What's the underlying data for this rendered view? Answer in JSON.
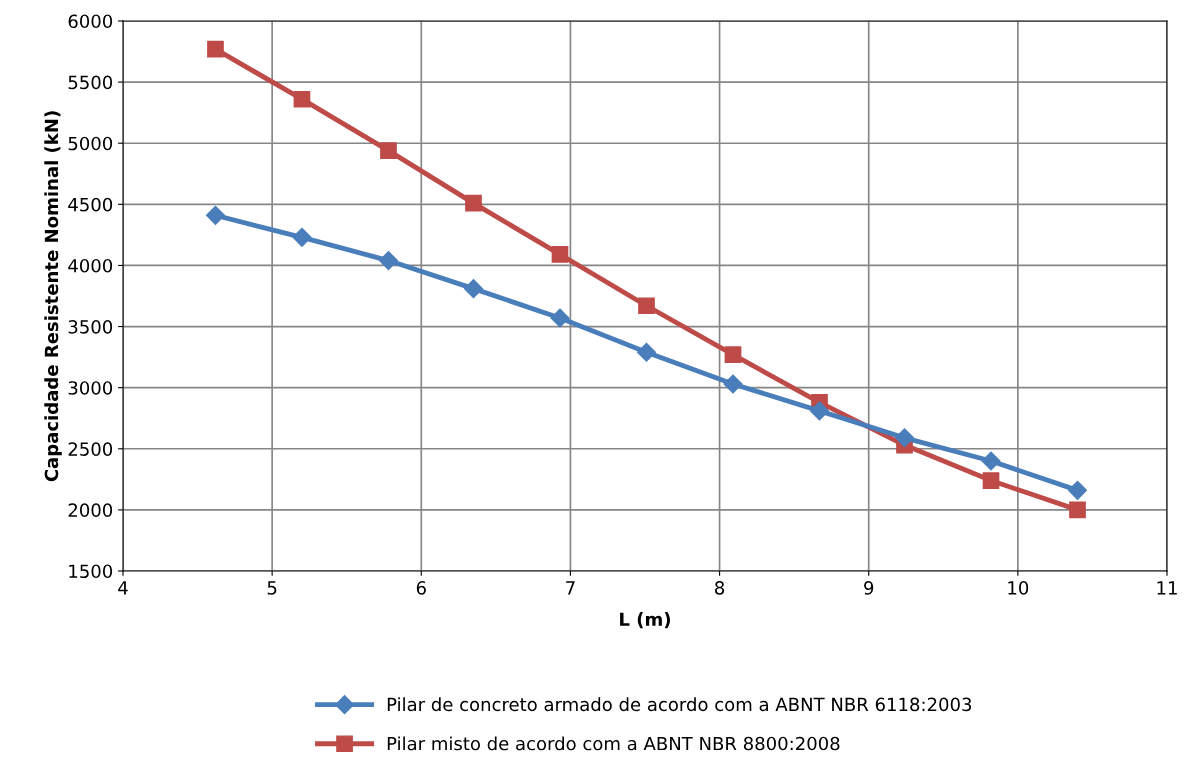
{
  "chart_data": {
    "type": "line",
    "xlabel": "L (m)",
    "ylabel": "Capacidade Resistente Nominal (kN)",
    "x": [
      4.62,
      5.2,
      5.78,
      6.35,
      6.93,
      7.51,
      8.09,
      8.67,
      9.24,
      9.82,
      10.4
    ],
    "series": [
      {
        "name": "Pilar de concreto armado de acordo com a ABNT NBR 6118:2003",
        "color": "#4a7ebb",
        "marker": "diamond",
        "values": [
          4410,
          4230,
          4040,
          3810,
          3570,
          3290,
          3030,
          2810,
          2590,
          2400,
          2160
        ]
      },
      {
        "name": "Pilar misto de acordo com a ABNT NBR 8800:2008",
        "color": "#be4b48",
        "marker": "square",
        "values": [
          5770,
          5360,
          4940,
          4510,
          4090,
          3670,
          3270,
          2880,
          2530,
          2240,
          2000
        ]
      }
    ],
    "xlim": [
      4,
      11
    ],
    "xticks": [
      4,
      5,
      6,
      7,
      8,
      9,
      10,
      11
    ],
    "ylim": [
      1500,
      6000
    ],
    "yticks": [
      1500,
      2000,
      2500,
      3000,
      3500,
      4000,
      4500,
      5000,
      5500,
      6000
    ],
    "grid": true,
    "legend": "bottom",
    "line_style": "solid"
  }
}
